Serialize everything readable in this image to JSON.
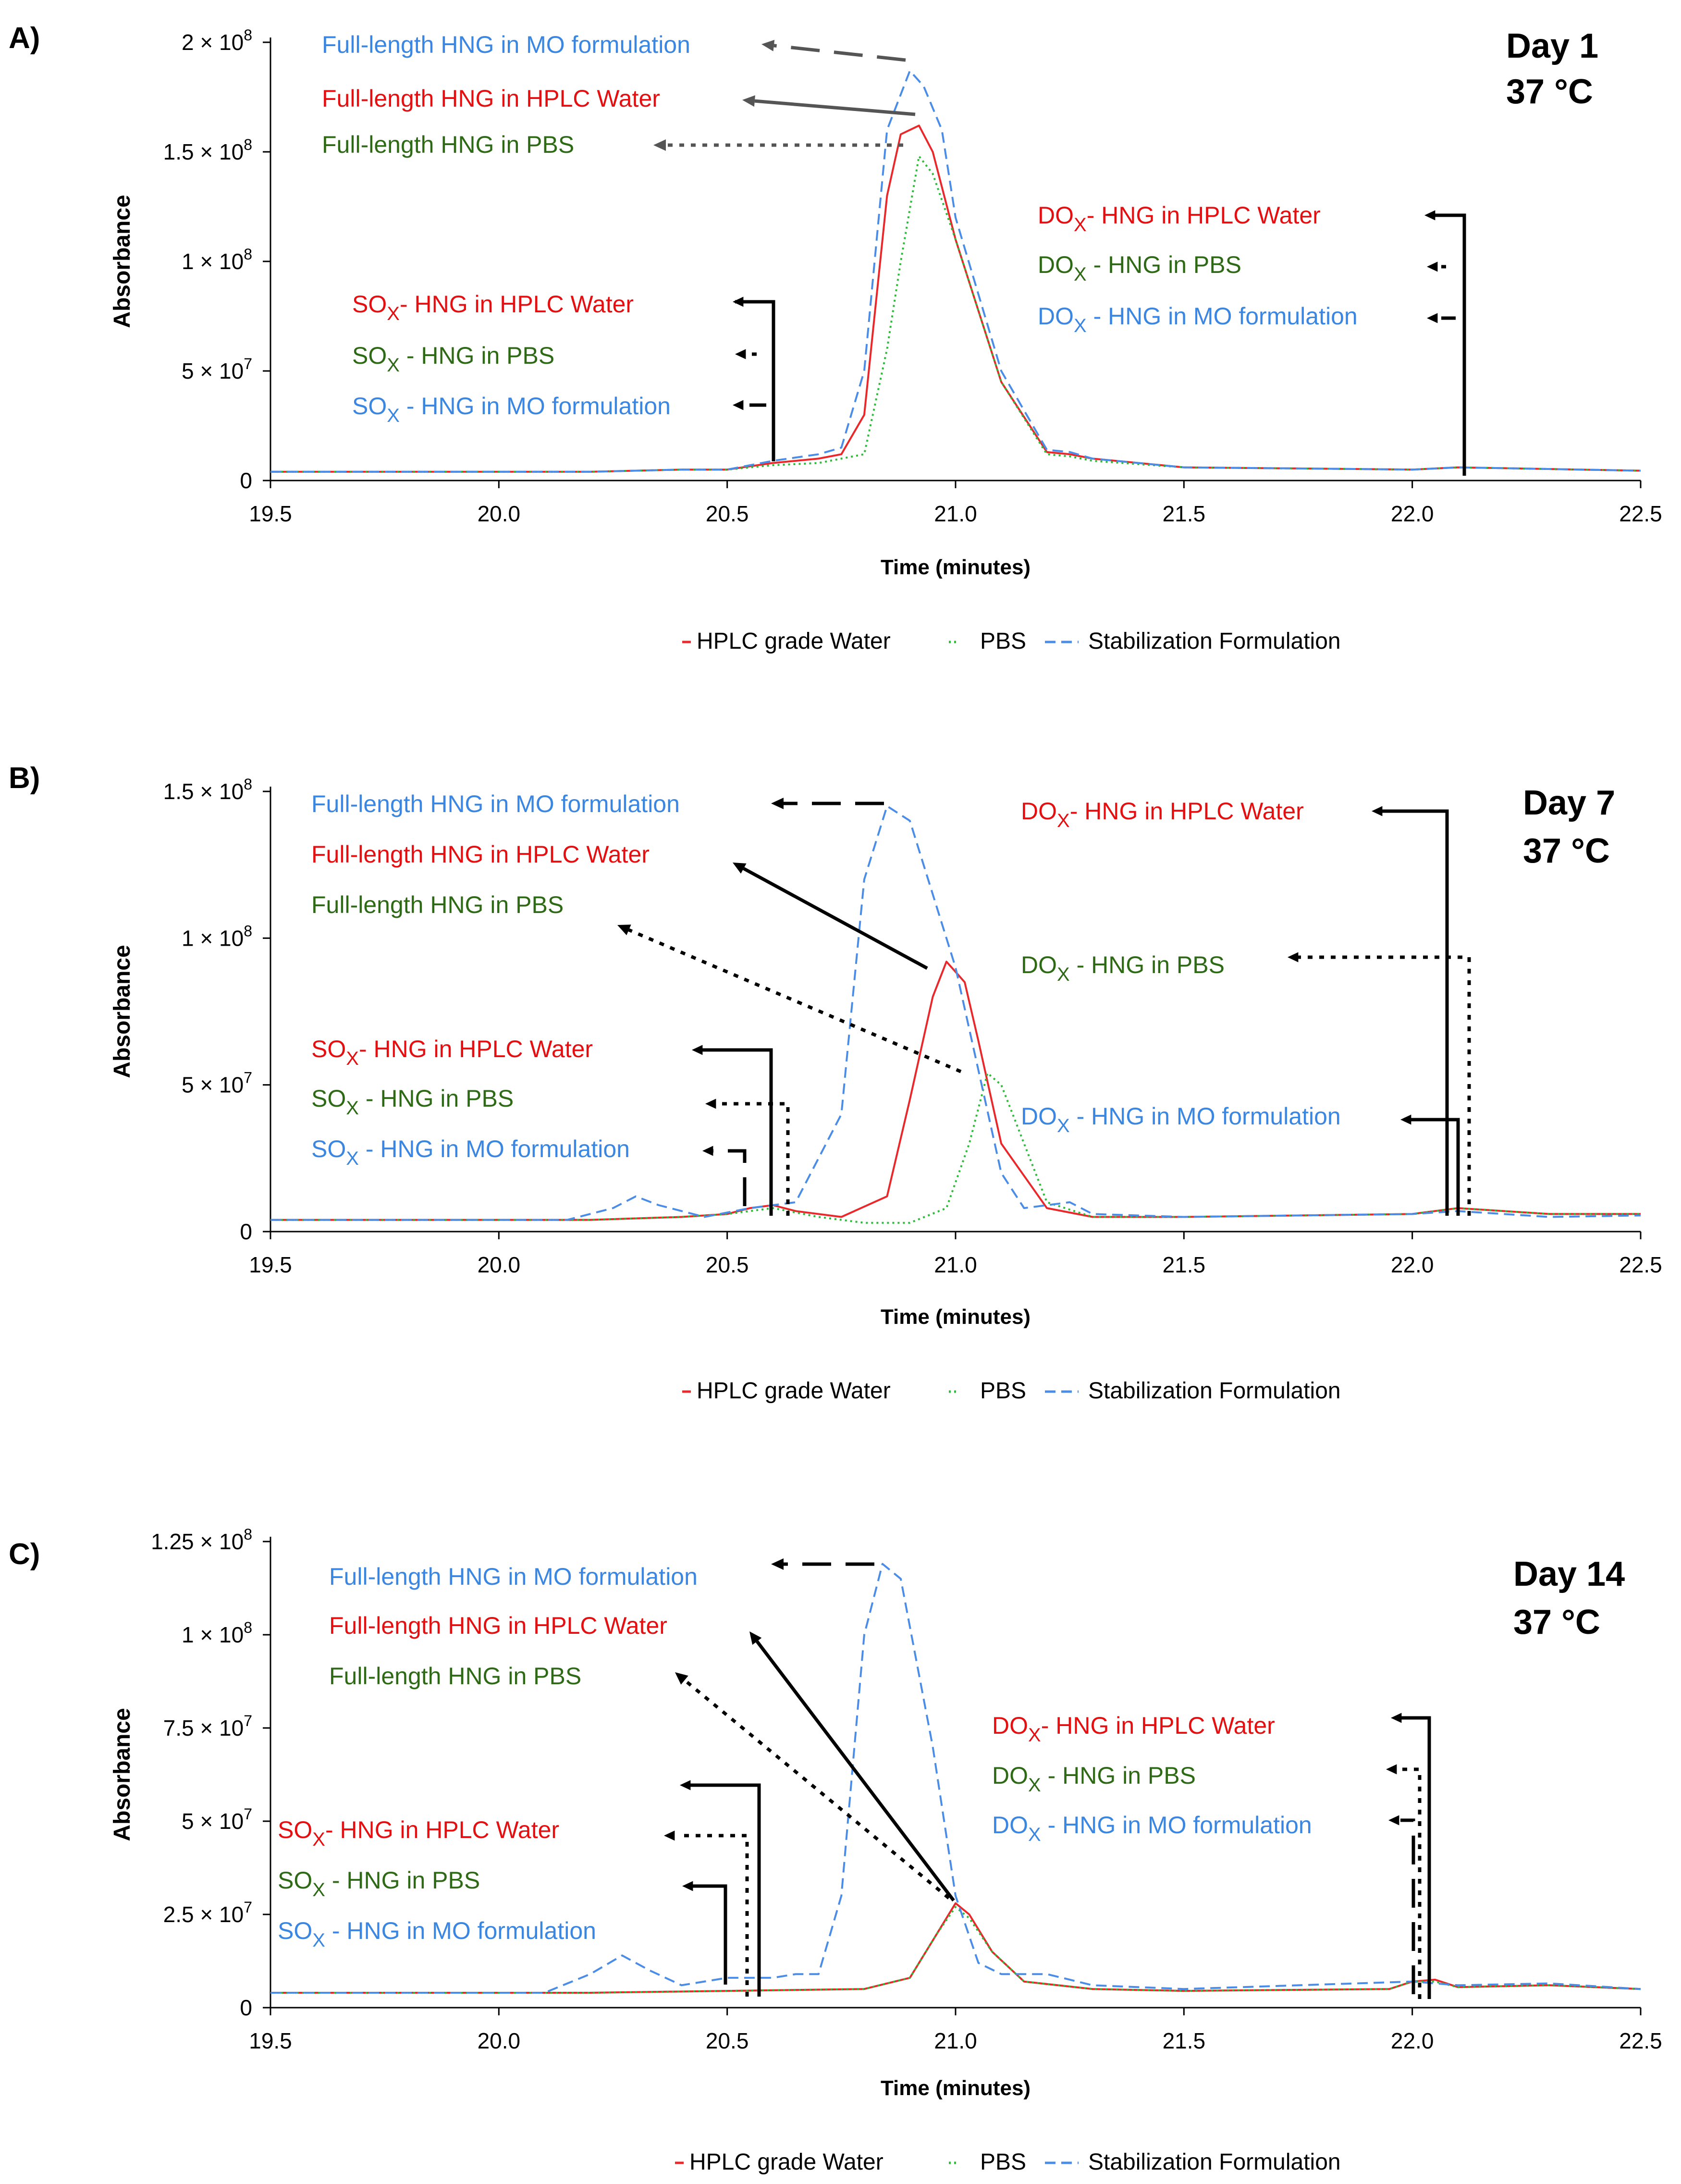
{
  "figure": {
    "colors": {
      "water": "#e8282a",
      "pbs": "#2dbb3a",
      "mo": "#4a8ce6",
      "water_label": "#e30f10",
      "pbs_label": "#2e6a16",
      "mo_label": "#3a86e0",
      "axis": "#000000",
      "arrow_gray": "#555555"
    }
  },
  "chart_data": [
    {
      "type": "line",
      "panel_label": "A)",
      "day": "Day 1",
      "temp": "37 °C",
      "xlabel": "Time (minutes)",
      "ylabel": "Absorbance",
      "xlim": [
        19.5,
        22.5
      ],
      "ylim": [
        0,
        200000000
      ],
      "x_ticks": [
        "19.5",
        "20.0",
        "20.5",
        "21.0",
        "21.5",
        "22.0",
        "22.5"
      ],
      "y_ticks": [
        {
          "value": 0,
          "label": "0"
        },
        {
          "value": 50000000,
          "label": "5 × 10",
          "exp": "7"
        },
        {
          "value": 100000000,
          "label": "1 × 10",
          "exp": "8"
        },
        {
          "value": 150000000,
          "label": "1.5 × 10",
          "exp": "8"
        },
        {
          "value": 200000000,
          "label": "2 × 10",
          "exp": "8"
        }
      ],
      "legend": [
        "HPLC grade Water",
        "PBS",
        "Stabilization Formulation"
      ],
      "series": [
        {
          "name": "HPLC grade Water",
          "key": "water",
          "x": [
            19.5,
            20.2,
            20.4,
            20.5,
            20.6,
            20.7,
            20.75,
            20.8,
            20.85,
            20.88,
            20.92,
            20.95,
            21.0,
            21.1,
            21.2,
            21.25,
            21.3,
            21.5,
            22.0,
            22.1,
            22.5
          ],
          "y": [
            4000000,
            4000000,
            5000000,
            5000000,
            8000000,
            10000000,
            12000000,
            30000000,
            130000000,
            158000000,
            162000000,
            150000000,
            110000000,
            45000000,
            13000000,
            12000000,
            10000000,
            6000000,
            5000000,
            6000000,
            4500000
          ]
        },
        {
          "name": "PBS",
          "key": "pbs",
          "x": [
            19.5,
            20.2,
            20.4,
            20.5,
            20.6,
            20.7,
            20.8,
            20.85,
            20.88,
            20.92,
            20.95,
            21.0,
            21.1,
            21.2,
            21.25,
            21.3,
            21.5,
            22.0,
            22.1,
            22.5
          ],
          "y": [
            4000000,
            4000000,
            5000000,
            5000000,
            7000000,
            8000000,
            12000000,
            60000000,
            100000000,
            148000000,
            140000000,
            110000000,
            45000000,
            12000000,
            11000000,
            9000000,
            6000000,
            5000000,
            6000000,
            4500000
          ]
        },
        {
          "name": "Stabilization Formulation",
          "key": "mo",
          "x": [
            19.5,
            20.2,
            20.4,
            20.5,
            20.6,
            20.7,
            20.75,
            20.8,
            20.85,
            20.9,
            20.93,
            20.97,
            21.0,
            21.1,
            21.2,
            21.25,
            21.3,
            21.5,
            22.0,
            22.1,
            22.5
          ],
          "y": [
            4000000,
            4000000,
            5000000,
            5000000,
            9000000,
            12000000,
            15000000,
            50000000,
            160000000,
            187000000,
            180000000,
            160000000,
            120000000,
            50000000,
            14000000,
            13000000,
            10000000,
            6000000,
            5000000,
            6000000,
            4500000
          ]
        }
      ],
      "annotations": [
        {
          "text": "Full-length HNG in MO formulation",
          "color": "mo"
        },
        {
          "text": "Full-length  HNG in HPLC Water",
          "color": "water"
        },
        {
          "text": "Full-length HNG in PBS",
          "color": "pbs"
        },
        {
          "main": "SO",
          "sub": "X",
          "rest": "- HNG in HPLC Water",
          "color": "water",
          "sub_color": "water"
        },
        {
          "main": "SO",
          "sub": "X",
          "rest": " - HNG in PBS",
          "color": "pbs",
          "sub_color": "pbs"
        },
        {
          "main": "SO",
          "sub": "X",
          "rest": " - HNG in MO formulation",
          "color": "mo",
          "sub_color": "mo"
        },
        {
          "main": "DO",
          "sub": "X",
          "rest": "- HNG in HPLC Water",
          "color": "water",
          "sub_color": "water"
        },
        {
          "main": "DO",
          "sub": "X",
          "rest": " - HNG in PBS",
          "color": "pbs",
          "sub_color": "pbs"
        },
        {
          "main": "DO",
          "sub": "X",
          "rest": " - HNG in MO formulation",
          "color": "mo",
          "sub_color": "mo"
        }
      ]
    },
    {
      "type": "line",
      "panel_label": "B)",
      "day": "Day 7",
      "temp": "37 °C",
      "xlabel": "Time (minutes)",
      "ylabel": "Absorbance",
      "xlim": [
        19.5,
        22.5
      ],
      "ylim": [
        0,
        150000000
      ],
      "x_ticks": [
        "19.5",
        "20.0",
        "20.5",
        "21.0",
        "21.5",
        "22.0",
        "22.5"
      ],
      "y_ticks": [
        {
          "value": 0,
          "label": "0"
        },
        {
          "value": 50000000,
          "label": "5 × 10",
          "exp": "7"
        },
        {
          "value": 100000000,
          "label": "1 × 10",
          "exp": "8"
        },
        {
          "value": 150000000,
          "label": "1.5 × 10",
          "exp": "8"
        }
      ],
      "legend": [
        "HPLC grade Water",
        "PBS",
        "Stabilization Formulation"
      ],
      "series": [
        {
          "name": "HPLC grade Water",
          "key": "water",
          "x": [
            19.5,
            20.2,
            20.4,
            20.5,
            20.55,
            20.6,
            20.65,
            20.75,
            20.85,
            20.9,
            20.95,
            20.98,
            21.02,
            21.05,
            21.1,
            21.2,
            21.3,
            21.5,
            22.0,
            22.1,
            22.3,
            22.5
          ],
          "y": [
            4000000,
            4000000,
            5000000,
            6000000,
            8000000,
            9000000,
            7000000,
            5000000,
            12000000,
            45000000,
            80000000,
            92000000,
            85000000,
            65000000,
            30000000,
            8000000,
            5000000,
            5000000,
            6000000,
            8000000,
            6000000,
            6000000
          ]
        },
        {
          "name": "PBS",
          "key": "pbs",
          "x": [
            19.5,
            20.2,
            20.4,
            20.5,
            20.6,
            20.7,
            20.8,
            20.9,
            20.98,
            21.03,
            21.07,
            21.1,
            21.15,
            21.2,
            21.3,
            21.5,
            22.0,
            22.1,
            22.3,
            22.5
          ],
          "y": [
            4000000,
            4000000,
            5000000,
            6000000,
            8000000,
            5000000,
            3000000,
            3000000,
            8000000,
            30000000,
            54000000,
            50000000,
            30000000,
            10000000,
            5000000,
            5000000,
            6000000,
            8000000,
            6000000,
            6000000
          ]
        },
        {
          "name": "Stabilization Formulation",
          "key": "mo",
          "x": [
            19.5,
            20.15,
            20.25,
            20.3,
            20.35,
            20.45,
            20.55,
            20.65,
            20.75,
            20.8,
            20.85,
            20.9,
            21.0,
            21.1,
            21.15,
            21.25,
            21.3,
            21.5,
            22.0,
            22.1,
            22.3,
            22.5
          ],
          "y": [
            4000000,
            4000000,
            8000000,
            12000000,
            9000000,
            5000000,
            8000000,
            10000000,
            40000000,
            120000000,
            145000000,
            140000000,
            90000000,
            20000000,
            8000000,
            10000000,
            6000000,
            5000000,
            6000000,
            7000000,
            5000000,
            5500000
          ]
        }
      ],
      "annotations": [
        {
          "text": "Full-length HNG in MO formulation",
          "color": "mo"
        },
        {
          "text": "Full-length  HNG in HPLC Water",
          "color": "water"
        },
        {
          "text": "Full-length HNG in PBS",
          "color": "pbs"
        },
        {
          "main": "SO",
          "sub": "X",
          "rest": "- HNG in HPLC Water",
          "color": "water",
          "sub_color": "water"
        },
        {
          "main": "SO",
          "sub": "X",
          "rest": " - HNG in PBS",
          "color": "pbs",
          "sub_color": "pbs"
        },
        {
          "main": "SO",
          "sub": "X",
          "rest": " - HNG in MO formulation",
          "color": "mo",
          "sub_color": "mo"
        },
        {
          "main": "DO",
          "sub": "X",
          "rest": "- HNG in HPLC Water",
          "color": "water",
          "sub_color": "water"
        },
        {
          "main": "DO",
          "sub": "X",
          "rest": " - HNG in PBS",
          "color": "pbs",
          "sub_color": "pbs"
        },
        {
          "main": "DO",
          "sub": "X",
          "rest": " - HNG in MO formulation",
          "color": "mo",
          "sub_color": "mo"
        }
      ]
    },
    {
      "type": "line",
      "panel_label": "C)",
      "day": "Day 14",
      "temp": "37 °C",
      "xlabel": "Time (minutes)",
      "ylabel": "Absorbance",
      "xlim": [
        19.5,
        22.5
      ],
      "ylim": [
        0,
        125000000
      ],
      "x_ticks": [
        "19.5",
        "20.0",
        "20.5",
        "21.0",
        "21.5",
        "22.0",
        "22.5"
      ],
      "y_ticks": [
        {
          "value": 0,
          "label": "0"
        },
        {
          "value": 25000000,
          "label": "2.5 × 10",
          "exp": "7"
        },
        {
          "value": 50000000,
          "label": "5 × 10",
          "exp": "7"
        },
        {
          "value": 75000000,
          "label": "7.5 × 10",
          "exp": "7"
        },
        {
          "value": 100000000,
          "label": "1 × 10",
          "exp": "8"
        },
        {
          "value": 125000000,
          "label": "1.25 × 10",
          "exp": "8"
        }
      ],
      "legend": [
        "HPLC grade Water",
        "PBS",
        "Stabilization Formulation"
      ],
      "series": [
        {
          "name": "HPLC grade Water",
          "key": "water",
          "x": [
            19.5,
            20.2,
            20.5,
            20.8,
            20.9,
            20.96,
            21.0,
            21.03,
            21.08,
            21.15,
            21.3,
            21.5,
            21.95,
            22.0,
            22.05,
            22.1,
            22.3,
            22.5
          ],
          "y": [
            4000000,
            4000000,
            4500000,
            5000000,
            8000000,
            20000000,
            28000000,
            25000000,
            15000000,
            7000000,
            5000000,
            4500000,
            5000000,
            7000000,
            7500000,
            5500000,
            6000000,
            5000000
          ]
        },
        {
          "name": "PBS",
          "key": "pbs",
          "x": [
            19.5,
            20.2,
            20.5,
            20.8,
            20.9,
            20.96,
            21.0,
            21.03,
            21.08,
            21.15,
            21.3,
            21.5,
            21.95,
            22.0,
            22.05,
            22.1,
            22.3,
            22.5
          ],
          "y": [
            4000000,
            4000000,
            4500000,
            5000000,
            8000000,
            20000000,
            27000000,
            24000000,
            15000000,
            7000000,
            5000000,
            4500000,
            5000000,
            7000000,
            7000000,
            5500000,
            6000000,
            5000000
          ]
        },
        {
          "name": "Stabilization Formulation",
          "key": "mo",
          "x": [
            19.5,
            20.1,
            20.2,
            20.27,
            20.33,
            20.4,
            20.5,
            20.6,
            20.65,
            20.7,
            20.75,
            20.8,
            20.84,
            20.88,
            20.95,
            21.0,
            21.05,
            21.1,
            21.2,
            21.3,
            21.5,
            22.0,
            22.1,
            22.3,
            22.5
          ],
          "y": [
            4000000,
            4000000,
            9000000,
            14000000,
            10000000,
            6000000,
            8000000,
            8000000,
            9000000,
            9000000,
            30000000,
            100000000,
            119000000,
            115000000,
            70000000,
            30000000,
            12000000,
            9000000,
            9000000,
            6000000,
            5000000,
            7000000,
            6000000,
            6500000,
            5000000
          ]
        }
      ],
      "annotations": [
        {
          "text": "Full-length HNG in MO formulation",
          "color": "mo"
        },
        {
          "text": "Full-length  HNG in HPLC Water",
          "color": "water"
        },
        {
          "text": "Full-length HNG in PBS",
          "color": "pbs"
        },
        {
          "main": "DO",
          "sub": "X",
          "rest": "- HNG in HPLC Water",
          "color": "water",
          "sub_color": "water"
        },
        {
          "main": "DO",
          "sub": "X",
          "rest": " - HNG in PBS",
          "color": "pbs",
          "sub_color": "pbs"
        },
        {
          "main": "DO",
          "sub": "X",
          "rest": " - HNG in MO formulation",
          "color": "mo",
          "sub_color": "mo"
        },
        {
          "main": "SO",
          "sub": "X",
          "rest": "- HNG in HPLC Water",
          "color": "water",
          "sub_color": "water"
        },
        {
          "main": "SO",
          "sub": "X",
          "rest": " - HNG in PBS",
          "color": "pbs",
          "sub_color": "pbs"
        },
        {
          "main": "SO",
          "sub": "X",
          "rest": " - HNG in MO formulation",
          "color": "mo",
          "sub_color": "mo"
        }
      ]
    }
  ]
}
